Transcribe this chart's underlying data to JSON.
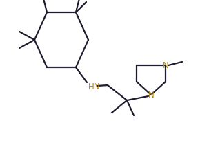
{
  "bg_color": "#ffffff",
  "line_color": "#1c1c2e",
  "hn_color": "#b8860b",
  "n_color": "#b8860b",
  "bond_lw": 1.6,
  "font_size": 8.5,
  "figsize": [
    3.16,
    2.14
  ],
  "dpi": 100,
  "xlim": [
    0,
    316
  ],
  "ylim": [
    0,
    214
  ]
}
